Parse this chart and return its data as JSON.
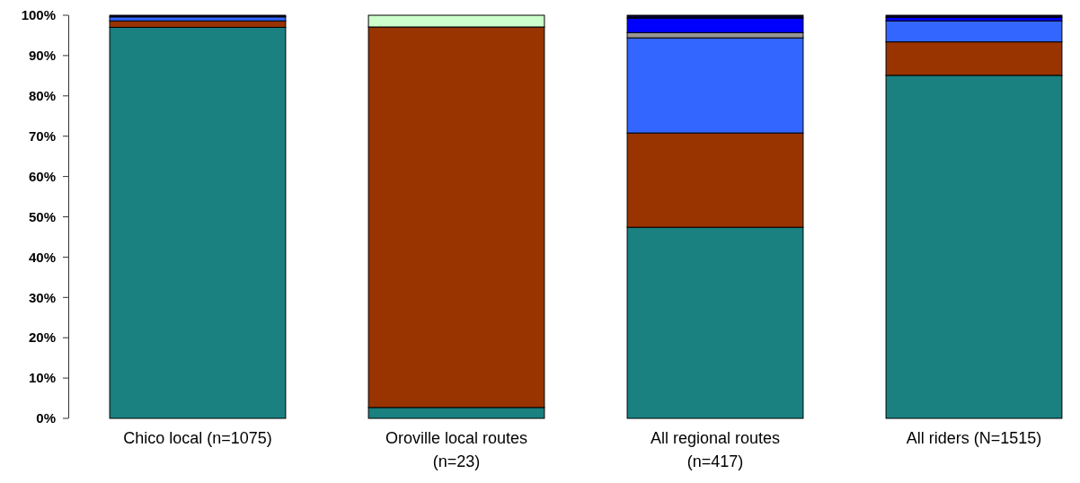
{
  "chart_data": {
    "type": "bar",
    "stacked": true,
    "categories": [
      "Chico local (n=1075)",
      "Oroville local routes (n=23)",
      "All regional routes (n=417)",
      "All riders (N=1515)"
    ],
    "series": [
      {
        "color": "#1a8080",
        "values": [
          97.0,
          2.7,
          47.4,
          85.1
        ]
      },
      {
        "color": "#993300",
        "values": [
          1.6,
          94.4,
          23.4,
          8.3
        ]
      },
      {
        "color": "#3366ff",
        "values": [
          1.0,
          0,
          23.6,
          5.2
        ]
      },
      {
        "color": "#969696",
        "values": [
          0,
          0,
          1.3,
          0
        ]
      },
      {
        "color": "#0000ff",
        "values": [
          0,
          0,
          3.6,
          0.9
        ]
      },
      {
        "color": "#ccffcc",
        "values": [
          0,
          2.9,
          0,
          0
        ]
      },
      {
        "color": "#000033",
        "values": [
          0.4,
          0,
          0.7,
          0.5
        ]
      }
    ],
    "ylim": [
      0,
      100
    ],
    "yticks": [
      {
        "value": 0,
        "label": "0%"
      },
      {
        "value": 10,
        "label": "10%"
      },
      {
        "value": 20,
        "label": "20%"
      },
      {
        "value": 30,
        "label": "30%"
      },
      {
        "value": 40,
        "label": "40%"
      },
      {
        "value": 50,
        "label": "50%"
      },
      {
        "value": 60,
        "label": "60%"
      },
      {
        "value": 70,
        "label": "70%"
      },
      {
        "value": 80,
        "label": "80%"
      },
      {
        "value": 90,
        "label": "90%"
      },
      {
        "value": 100,
        "label": "100%"
      }
    ],
    "grid": false
  }
}
